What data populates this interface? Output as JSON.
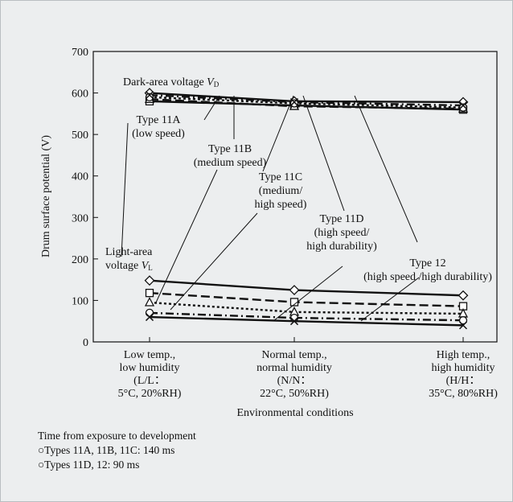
{
  "chart_data": {
    "type": "line",
    "categories": [
      [
        "Low temp.,",
        "low humidity",
        "(L/L：",
        "5°C, 20%RH)"
      ],
      [
        "Normal temp.,",
        "normal humidity",
        "(N/N：",
        "22°C, 50%RH)"
      ],
      [
        "High temp.,",
        "high humidity",
        "(H/H：",
        "35°C, 80%RH)"
      ]
    ],
    "xlabel": "Environmental conditions",
    "ylabel": "Drum surface potential (V)",
    "ylim": [
      0,
      700
    ],
    "yticks": [
      0,
      100,
      200,
      300,
      400,
      500,
      600,
      700
    ],
    "grid": false,
    "series": [
      {
        "name": "Type 11A (low speed)",
        "group": "dark",
        "marker": "diamond",
        "dash": "solid",
        "values": [
          600,
          580,
          578
        ]
      },
      {
        "name": "Type 11B (medium speed)",
        "group": "dark",
        "marker": "square",
        "dash": "solid",
        "values": [
          580,
          570,
          560
        ]
      },
      {
        "name": "Type 11C (medium/high speed)",
        "group": "dark",
        "marker": "triangle",
        "dash": "dashed",
        "values": [
          585,
          568,
          562
        ]
      },
      {
        "name": "Type 11D (high speed/high durability)",
        "group": "dark",
        "marker": "circle",
        "dash": "dotted",
        "values": [
          590,
          575,
          565
        ]
      },
      {
        "name": "Type 12 (high speed/high durability)",
        "group": "dark",
        "marker": "cross",
        "dash": "dashdot",
        "values": [
          595,
          578,
          570
        ]
      },
      {
        "name": "Type 11A (low speed)",
        "group": "light",
        "marker": "diamond",
        "dash": "solid",
        "values": [
          148,
          125,
          112
        ]
      },
      {
        "name": "Type 11B (medium speed)",
        "group": "light",
        "marker": "square",
        "dash": "dashed",
        "values": [
          118,
          96,
          86
        ]
      },
      {
        "name": "Type 11C (medium/high speed)",
        "group": "light",
        "marker": "triangle",
        "dash": "dotted",
        "values": [
          95,
          72,
          68
        ]
      },
      {
        "name": "Type 11D (high speed/high durability)",
        "group": "light",
        "marker": "circle",
        "dash": "dashdot",
        "values": [
          70,
          58,
          52
        ]
      },
      {
        "name": "Type 12 (high speed/high durability)",
        "group": "light",
        "marker": "cross",
        "dash": "solid",
        "values": [
          60,
          50,
          40
        ]
      }
    ],
    "annotations": {
      "dark": {
        "text": "Dark-area voltage ",
        "var": "V",
        "sub": "D"
      },
      "light": {
        "line1": "Light-area",
        "line2": "voltage ",
        "var": "V",
        "sub": "L"
      },
      "labels": [
        [
          "Type 11A",
          "(low speed)"
        ],
        [
          "Type 11B",
          "(medium speed)"
        ],
        [
          "Type 11C",
          "(medium/",
          "high speed)"
        ],
        [
          "Type 11D",
          "(high speed/",
          "high durability)"
        ],
        [
          "Type 12",
          "(high speed /high durability)"
        ]
      ]
    }
  },
  "note": {
    "title": "Time from exposure to development",
    "items": [
      "○Types 11A, 11B, 11C: 140 ms",
      "○Types 11D, 12: 90 ms"
    ]
  }
}
